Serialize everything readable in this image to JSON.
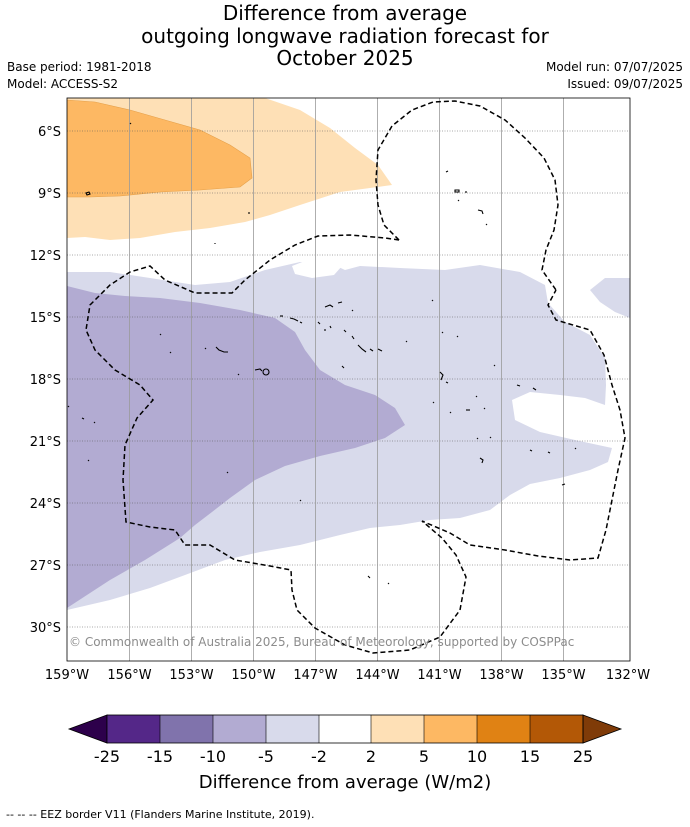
{
  "title": {
    "line1": "Difference from average",
    "line2": "outgoing longwave radiation forecast for",
    "line3": "October 2025"
  },
  "meta": {
    "base_period": "Base period: 1981-2018",
    "model": "Model: ACCESS-S2",
    "model_run": "Model run: 07/07/2025",
    "issued": "Issued: 09/07/2025"
  },
  "map": {
    "lat_labels": [
      "6°S",
      "9°S",
      "12°S",
      "15°S",
      "18°S",
      "21°S",
      "24°S",
      "27°S",
      "30°S"
    ],
    "lon_labels": [
      "159°W",
      "156°W",
      "153°W",
      "150°W",
      "147°W",
      "144°W",
      "141°W",
      "138°W",
      "135°W",
      "132°W"
    ],
    "copyright": "© Commonwealth of Australia 2025, Bureau of Meteorology, supported by COSPPac"
  },
  "colorbar": {
    "labels": [
      "-25",
      "-15",
      "-10",
      "-5",
      "-2",
      "2",
      "5",
      "10",
      "15",
      "25"
    ],
    "colors": [
      "#2d004b",
      "#542788",
      "#8073ac",
      "#b2abd2",
      "#d8daeb",
      "#ffffff",
      "#fee0b6",
      "#fdb863",
      "#e08214",
      "#b35806",
      "#7f3b08"
    ],
    "title": "Difference from average (W/m2)"
  },
  "footer": "--  --  -- EEZ border V11 (Flanders Marine Institute, 2019)."
}
